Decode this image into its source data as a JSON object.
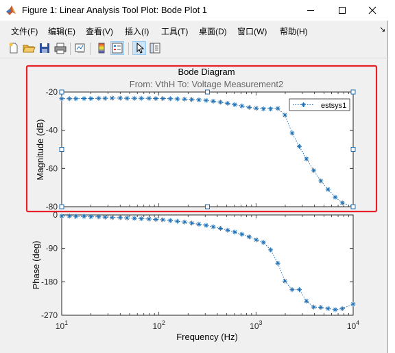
{
  "window": {
    "title": "Figure 1: Linear Analysis Tool Plot: Bode Plot 1"
  },
  "menu": [
    "文件(F)",
    "编辑(E)",
    "查看(V)",
    "插入(I)",
    "工具(T)",
    "桌面(D)",
    "窗口(W)",
    "帮助(H)"
  ],
  "toolbar": {
    "buttons": [
      "new-figure-icon",
      "open-file-icon",
      "save-icon",
      "print-icon",
      "link-plot-icon",
      "colorbar-icon",
      "legend-icon",
      "pointer-icon",
      "property-inspector-icon"
    ]
  },
  "highlight_color": "#e8202a",
  "series_color": "#1f6fb4",
  "chart_data": [
    {
      "type": "line",
      "title": "Bode Diagram",
      "subtitle": "From: VthH  To: Voltage Measurement2",
      "xlabel": "",
      "ylabel": "Magnitude (dB)",
      "xscale": "log",
      "xlim": [
        10,
        10000
      ],
      "ylim": [
        -80,
        -20
      ],
      "yticks": [
        -20,
        -40,
        -60,
        -80
      ],
      "grid": false,
      "legend_position": "top-right",
      "series": [
        {
          "name": "estsys1",
          "x": [
            10,
            12,
            14,
            17,
            20,
            24,
            28,
            33,
            40,
            47,
            56,
            66,
            79,
            93,
            110,
            131,
            155,
            184,
            218,
            258,
            306,
            363,
            430,
            510,
            604,
            716,
            849,
            1006,
            1193,
            1414,
            1676,
            1986,
            2354,
            2790,
            3307,
            3920,
            4646,
            5507,
            6527,
            7736,
            10000
          ],
          "values": [
            -23.5,
            -23.5,
            -23.5,
            -23.4,
            -23.4,
            -23.3,
            -23.3,
            -23.2,
            -23.2,
            -23.3,
            -23.3,
            -23.3,
            -23.3,
            -23.4,
            -23.4,
            -23.5,
            -23.6,
            -23.7,
            -23.9,
            -24.1,
            -24.4,
            -24.8,
            -25.3,
            -25.9,
            -26.6,
            -27.3,
            -28.0,
            -28.5,
            -28.8,
            -28.8,
            -28.6,
            -32.0,
            -41.5,
            -48.5,
            -55.0,
            -61.0,
            -66.5,
            -71.0,
            -75.0,
            -78.0,
            -80.0
          ]
        }
      ]
    },
    {
      "type": "line",
      "xlabel": "Frequency  (Hz)",
      "ylabel": "Phase (deg)",
      "xscale": "log",
      "xlim": [
        10,
        10000
      ],
      "ylim": [
        -270,
        0
      ],
      "yticks": [
        0,
        -90,
        -180,
        -270
      ],
      "xticks": [
        10,
        100,
        1000,
        10000
      ],
      "xtick_labels": [
        {
          "base": "10",
          "exp": "1"
        },
        {
          "base": "10",
          "exp": "2"
        },
        {
          "base": "10",
          "exp": "3"
        },
        {
          "base": "10",
          "exp": "4"
        }
      ],
      "grid": false,
      "series": [
        {
          "name": "",
          "x": [
            10,
            12,
            14,
            17,
            20,
            24,
            28,
            33,
            40,
            47,
            56,
            66,
            79,
            93,
            110,
            131,
            155,
            184,
            218,
            258,
            306,
            363,
            430,
            510,
            604,
            716,
            849,
            1006,
            1193,
            1414,
            1676,
            1986,
            2354,
            2790,
            3307,
            3920,
            4646,
            5507,
            6527,
            7736,
            10000
          ],
          "values": [
            -3,
            -3,
            -4,
            -4,
            -5,
            -5,
            -6,
            -7,
            -7,
            -8,
            -9,
            -10,
            -11,
            -12,
            -13,
            -15,
            -17,
            -19,
            -22,
            -25,
            -28,
            -32,
            -36,
            -41,
            -46,
            -52,
            -59,
            -67,
            -74,
            -94,
            -130,
            -178,
            -201,
            -201,
            -232,
            -248,
            -249,
            -252,
            -255,
            -252,
            -240
          ]
        }
      ]
    }
  ]
}
